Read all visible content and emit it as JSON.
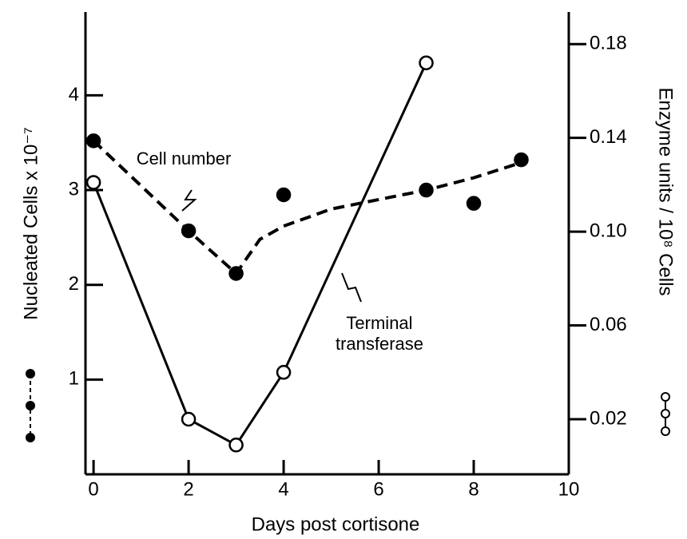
{
  "chart_data": {
    "type": "line",
    "xlabel": "Days post cortisone",
    "ylabel": "Nucleated Cells x 10⁻⁷",
    "y2label": "Enzyme units / 10⁸ Cells",
    "xlim": [
      -0.17,
      10
    ],
    "xticks": [
      0,
      2,
      4,
      6,
      8,
      10
    ],
    "ylim": [
      0,
      4.88
    ],
    "yticks": [
      1,
      2,
      3,
      4
    ],
    "y2lim": [
      -0.0035,
      0.1937
    ],
    "y2ticks": [
      0.02,
      0.06,
      {
        "value": 0.1,
        "label": "0.10"
      },
      0.14,
      0.18
    ],
    "series": [
      {
        "name": "Cell number",
        "color": "#000000",
        "axis": "y",
        "line": "none",
        "marker": "filled",
        "x": [
          0,
          2,
          3,
          4,
          7,
          8,
          9
        ],
        "values": [
          3.52,
          2.57,
          2.12,
          2.95,
          3.0,
          2.86,
          3.32
        ]
      },
      {
        "color": "#000000",
        "axis": "y",
        "line": "dashed",
        "marker": "none",
        "x": [
          0,
          2,
          3,
          3.5,
          4,
          5,
          6,
          7,
          8,
          9
        ],
        "values": [
          3.52,
          2.57,
          2.12,
          2.48,
          2.62,
          2.8,
          2.9,
          3.0,
          3.13,
          3.29
        ]
      },
      {
        "name": "Terminal transferase",
        "color": "#000000",
        "axis": "y2",
        "line": "solid",
        "marker": "open",
        "x": [
          0,
          2,
          3,
          4,
          7
        ],
        "values": [
          0.121,
          0.02,
          0.009,
          0.04,
          0.172
        ]
      }
    ]
  }
}
